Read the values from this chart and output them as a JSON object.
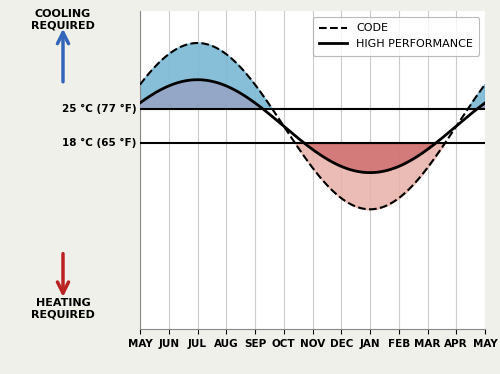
{
  "months": [
    "MAY",
    "JUN",
    "JUL",
    "AUG",
    "SEP",
    "OCT",
    "NOV",
    "DEC",
    "JAN",
    "FEB",
    "MAR",
    "APR",
    "MAY"
  ],
  "x_ticks": [
    0,
    1,
    2,
    3,
    4,
    5,
    6,
    7,
    8,
    9,
    10,
    11,
    12
  ],
  "upper_threshold": 25,
  "lower_threshold": 18,
  "y_upper_threshold_label": "25 °C (77 °F)",
  "y_lower_threshold_label": "18 °C (65 °F)",
  "code_amp": 17.0,
  "hp_amp": 9.5,
  "mean_temp": 21.5,
  "phase_peak": 2.0,
  "background_color": "#f0f0eb",
  "plot_bg": "#ffffff",
  "blue_fill": "#7ab8d4",
  "blue_overlap_fill": "#9a9fc0",
  "red_fill_outer": "#e8b0a8",
  "red_fill_inner": "#cc6666",
  "cooling_arrow_color": "#3366bb",
  "heating_arrow_color": "#bb2222",
  "legend_code_label": "CODE",
  "legend_hp_label": "HIGH PERFORMANCE",
  "cooling_label": "COOLING\nREQUIRED",
  "heating_label": "HEATING\nREQUIRED",
  "ylim_min": -20,
  "ylim_max": 45,
  "border_color": "#888888",
  "grid_color": "#cccccc"
}
